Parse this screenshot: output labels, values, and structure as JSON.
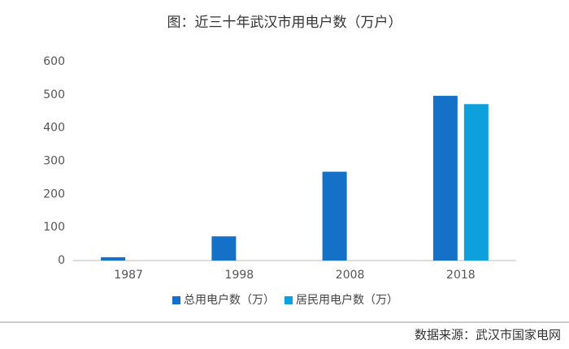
{
  "chart_data": {
    "type": "bar",
    "title": "图：近三十年武汉市用电户数（万户）",
    "categories": [
      "1987",
      "1998",
      "2008",
      "2018"
    ],
    "series": [
      {
        "name": "总用电户数（万）",
        "color": "#1570c8",
        "values": [
          10,
          73,
          268,
          497
        ]
      },
      {
        "name": "居民用电户数（万）",
        "color": "#0ea0dc",
        "values": [
          null,
          null,
          null,
          472
        ]
      }
    ],
    "ylim": [
      0,
      600
    ],
    "yticks": [
      0,
      100,
      200,
      300,
      400,
      500,
      600
    ],
    "grid": false,
    "legend": "bottom",
    "source": "数据来源：武汉市国家电网"
  }
}
